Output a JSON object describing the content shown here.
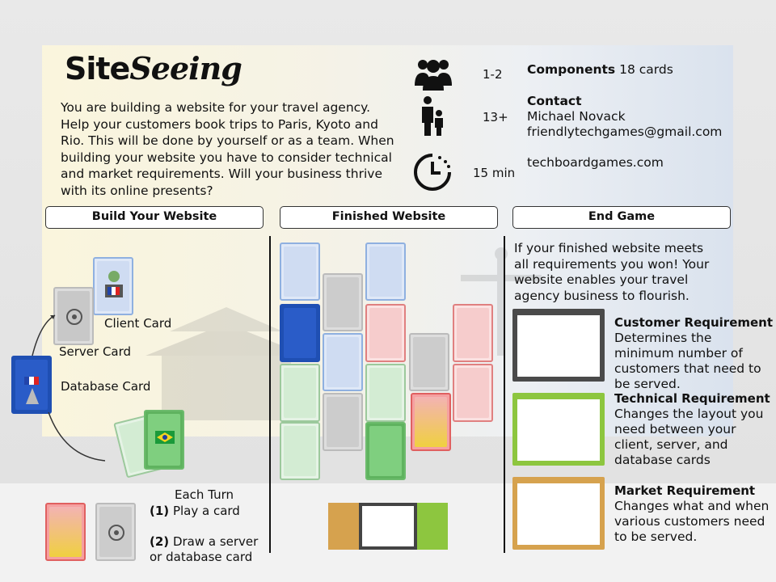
{
  "header": {
    "title_part1": "Site",
    "title_part2": "Seeing",
    "intro": "You are  building a website for your travel agency. Help your customers book trips to Paris, Kyoto and Rio. This will be done by yourself or as a team. When building your website you have to consider technical and market requirements. Will your business thrive with its online presents?"
  },
  "info": {
    "players": "1-2",
    "age": "13+",
    "time": "15 min",
    "components_label": "Components",
    "components_value": "18 cards",
    "contact_label": "Contact",
    "contact_name": "Michael Novack",
    "contact_email": "friendlytechgames@gmail.com",
    "website": "techboardgames.com",
    "icons": [
      "people-group-icon",
      "adult-child-icon",
      "clock-timer-icon"
    ]
  },
  "sections": {
    "build": "Build Your Website",
    "finished": "Finished Website",
    "end": "End Game"
  },
  "build": {
    "client_card": "Client Card",
    "server_card": "Server Card",
    "database_card": "Database Card",
    "each_turn": "Each Turn",
    "step1_num": "(1)",
    "step1_text": "Play a card",
    "step2_num": "(2)",
    "step2_text": "Draw a server",
    "step2_text2": "or database card"
  },
  "end_game": {
    "intro": "If your finished website meets all requirements you won! Your website enables your travel agency business to flourish.",
    "requirements": [
      {
        "title": "Customer Requirement",
        "text": "Determines the minimum number of customers that need to be served.",
        "color": "#4a4a4a"
      },
      {
        "title": "Technical Requirement",
        "text": "Changes the layout you need between your client, server, and database cards",
        "color": "#8dc63f"
      },
      {
        "title": "Market Requirement",
        "text": "Changes what and when various customers need to be served.",
        "color": "#d6a24e"
      }
    ]
  },
  "colors": {
    "client_blue": "#8fb0e0",
    "server_grey": "#cfcfcf",
    "database_navy": "#1f4fb3",
    "green_card": "#8fd18f",
    "red_card": "#f08080"
  }
}
